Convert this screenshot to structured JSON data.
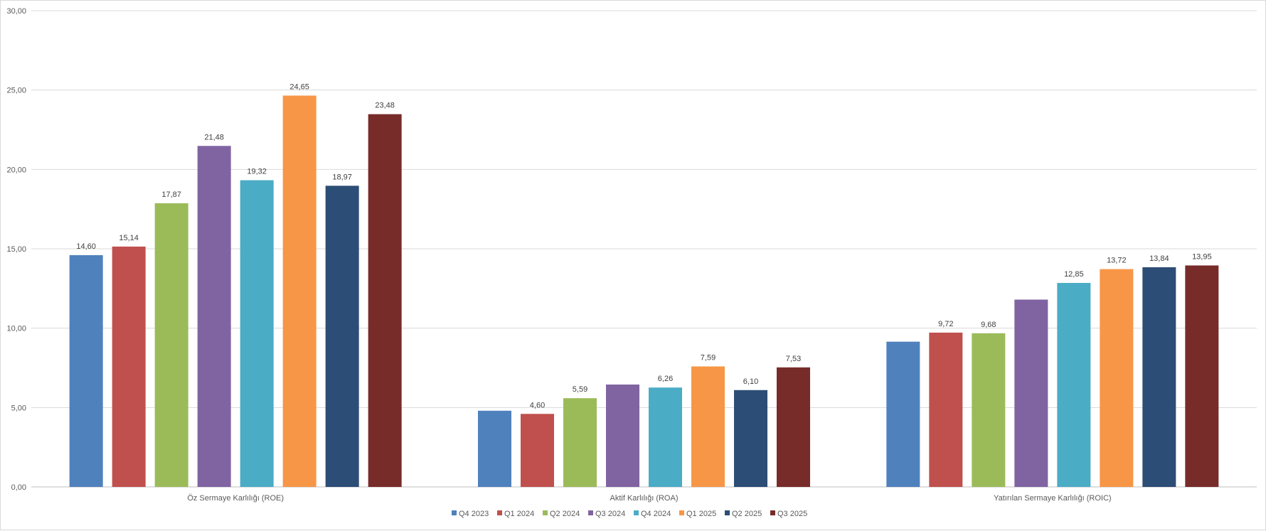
{
  "chart_data": {
    "type": "bar",
    "title": "",
    "xlabel": "",
    "ylabel": "",
    "ylim": [
      0,
      30
    ],
    "ytick_labels": [
      "0,00",
      "5,00",
      "10,00",
      "15,00",
      "20,00",
      "25,00",
      "30,00"
    ],
    "yticks": [
      0,
      5,
      10,
      15,
      20,
      25,
      30
    ],
    "grid": true,
    "legend_position": "bottom",
    "categories": [
      "Öz Sermaye Karlılığı (ROE)",
      "Aktif Karlılığı (ROA)",
      "Yatırılan Sermaye Karlılığı (ROIC)"
    ],
    "series": [
      {
        "name": "Q4 2023",
        "color": "#4F81BD",
        "values": [
          14.6,
          4.8,
          9.15
        ],
        "labels": [
          "14,60",
          "",
          ""
        ]
      },
      {
        "name": "Q1 2024",
        "color": "#C0504D",
        "values": [
          15.14,
          4.6,
          9.72
        ],
        "labels": [
          "15,14",
          "4,60",
          "9,72"
        ]
      },
      {
        "name": "Q2 2024",
        "color": "#9BBB59",
        "values": [
          17.87,
          5.59,
          9.68
        ],
        "labels": [
          "17,87",
          "5,59",
          "9,68"
        ]
      },
      {
        "name": "Q3 2024",
        "color": "#8064A2",
        "values": [
          21.48,
          6.45,
          11.8
        ],
        "labels": [
          "21,48",
          "",
          ""
        ]
      },
      {
        "name": "Q4 2024",
        "color": "#4BACC6",
        "values": [
          19.32,
          6.26,
          12.85
        ],
        "labels": [
          "19,32",
          "6,26",
          "12,85"
        ]
      },
      {
        "name": "Q1 2025",
        "color": "#F79646",
        "values": [
          24.65,
          7.59,
          13.72
        ],
        "labels": [
          "24,65",
          "7,59",
          "13,72"
        ]
      },
      {
        "name": "Q2 2025",
        "color": "#2C4D75",
        "values": [
          18.97,
          6.1,
          13.84
        ],
        "labels": [
          "18,97",
          "6,10",
          "13,84"
        ]
      },
      {
        "name": "Q3 2025",
        "color": "#772C2A",
        "values": [
          23.48,
          7.53,
          13.95
        ],
        "labels": [
          "23,48",
          "7,53",
          "13,95"
        ]
      }
    ]
  }
}
